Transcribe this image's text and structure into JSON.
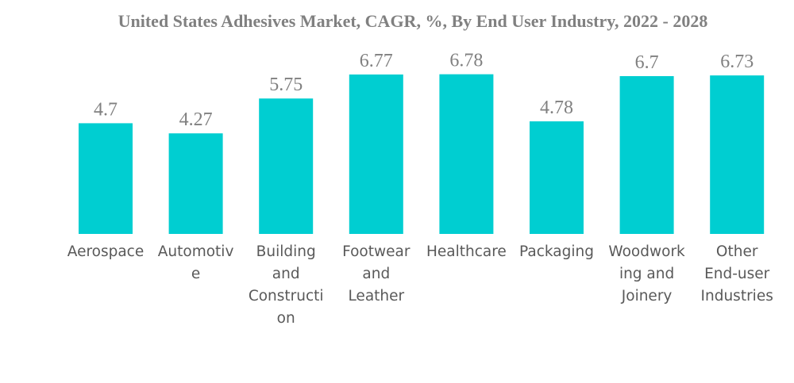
{
  "chart_data": {
    "type": "bar",
    "title": "United States Adhesives Market, CAGR, %, By End User Industry, 2022 - 2028",
    "xlabel": "",
    "ylabel": "",
    "categories": [
      "Aerospace",
      "Automotive",
      "Building and Construction",
      "Footwear and Leather",
      "Healthcare",
      "Packaging",
      "Woodworking and Joinery",
      "Other End-user Industries"
    ],
    "category_label_lines": [
      [
        "Aerospace"
      ],
      [
        "Automotiv",
        "e"
      ],
      [
        "Building",
        "and",
        "Constructi",
        "on"
      ],
      [
        "Footwear",
        "and",
        "Leather"
      ],
      [
        "Healthcare"
      ],
      [
        "Packaging"
      ],
      [
        "Woodwork",
        "ing and",
        "Joinery"
      ],
      [
        "Other",
        "End-user",
        "Industries"
      ]
    ],
    "values": [
      4.7,
      4.27,
      5.75,
      6.77,
      6.78,
      4.78,
      6.7,
      6.73
    ],
    "data_labels": [
      "4.7",
      "4.27",
      "5.75",
      "6.77",
      "6.78",
      "4.78",
      "6.7",
      "6.73"
    ],
    "ylim": [
      0,
      6.78
    ],
    "grid": false,
    "legend": "none",
    "bar_color": "#00ced1"
  }
}
